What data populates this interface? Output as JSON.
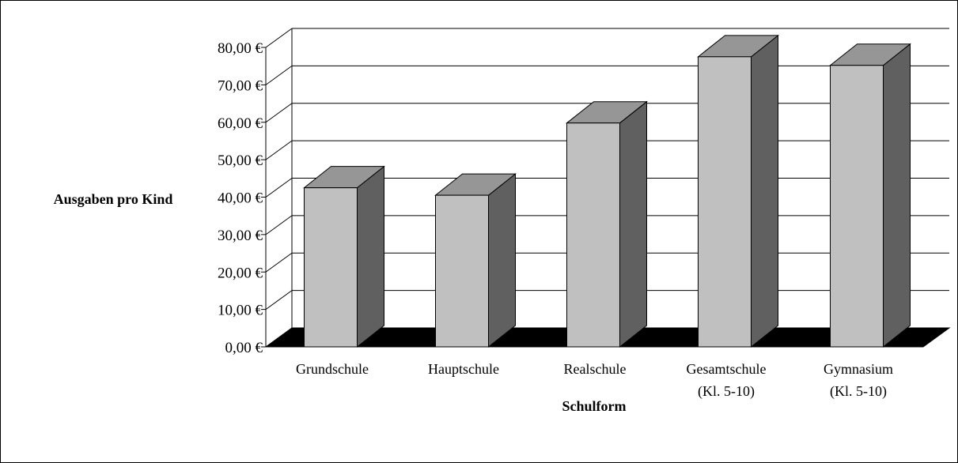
{
  "chart_data": {
    "type": "bar",
    "style": "3d-column",
    "categories": [
      [
        "Grundschule"
      ],
      [
        "Hauptschule"
      ],
      [
        "Realschule"
      ],
      [
        "Gesamtschule",
        "(Kl. 5-10)"
      ],
      [
        "Gymnasium",
        "(Kl. 5-10)"
      ]
    ],
    "values": [
      42.5,
      40.5,
      59.8,
      77.5,
      75.2
    ],
    "ylabel": "Ausgaben pro Kind",
    "xlabel": "Schulform",
    "ylim": [
      0,
      80
    ],
    "yticks": [
      "0,00 €",
      "10,00 €",
      "20,00 €",
      "30,00 €",
      "40,00 €",
      "50,00 €",
      "60,00 €",
      "70,00 €",
      "80,00 €"
    ],
    "grid": true,
    "legend": "none",
    "colors": {
      "front": "#c0c0c0",
      "side": "#606060",
      "top": "#969696",
      "floor": "#000000",
      "grid": "#000000"
    }
  }
}
